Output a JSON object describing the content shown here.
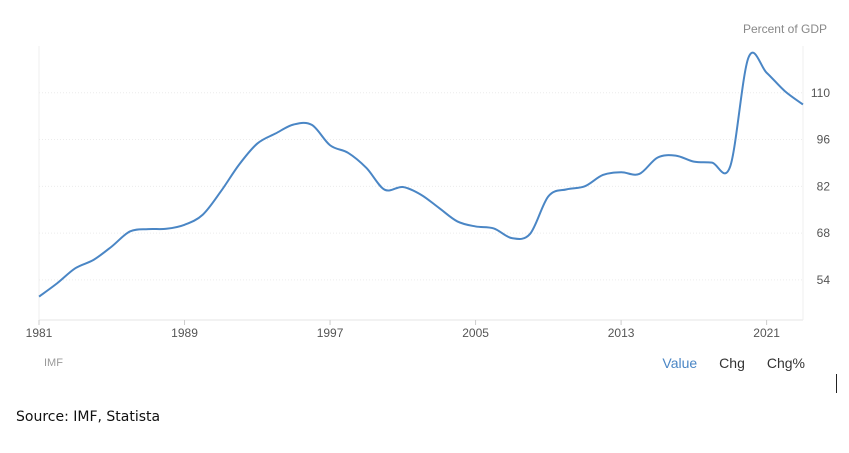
{
  "chart_data": {
    "type": "line",
    "unit_label": "Percent of GDP",
    "x_tick_labels": [
      "1981",
      "1989",
      "1997",
      "2005",
      "2013",
      "2021"
    ],
    "y_tick_labels": [
      "54",
      "68",
      "82",
      "96",
      "110"
    ],
    "xlim": [
      1981,
      2023
    ],
    "ylim": [
      42,
      124
    ],
    "grid": true,
    "series": [
      {
        "color": "#4a86c5",
        "points": [
          [
            1981,
            49
          ],
          [
            1982,
            53
          ],
          [
            1983,
            57.5
          ],
          [
            1984,
            60
          ],
          [
            1985,
            64
          ],
          [
            1986,
            68.5
          ],
          [
            1987,
            69.2
          ],
          [
            1988,
            69.3
          ],
          [
            1989,
            70.5
          ],
          [
            1990,
            73.5
          ],
          [
            1991,
            80.5
          ],
          [
            1992,
            88.5
          ],
          [
            1993,
            94.8
          ],
          [
            1994,
            97.8
          ],
          [
            1995,
            100.5
          ],
          [
            1996,
            100.4
          ],
          [
            1997,
            94.3
          ],
          [
            1998,
            92
          ],
          [
            1999,
            87.5
          ],
          [
            2000,
            81
          ],
          [
            2001,
            81.8
          ],
          [
            2002,
            79.5
          ],
          [
            2003,
            75.5
          ],
          [
            2004,
            71.5
          ],
          [
            2005,
            70
          ],
          [
            2006,
            69.4
          ],
          [
            2007,
            66.5
          ],
          [
            2008,
            67.8
          ],
          [
            2009,
            79
          ],
          [
            2010,
            81.1
          ],
          [
            2011,
            82
          ],
          [
            2012,
            85.4
          ],
          [
            2013,
            86.2
          ],
          [
            2014,
            85.7
          ],
          [
            2015,
            90.6
          ],
          [
            2016,
            91.2
          ],
          [
            2017,
            89.4
          ],
          [
            2018,
            89.1
          ],
          [
            2019,
            88
          ],
          [
            2020,
            120.5
          ],
          [
            2021,
            116
          ],
          [
            2022,
            110.5
          ],
          [
            2023,
            106.5
          ]
        ]
      }
    ]
  },
  "footer": {
    "source_org": "IMF",
    "toggles": [
      "Value",
      "Chg",
      "Chg%"
    ],
    "active_toggle": "Value"
  },
  "caption": "Source: IMF, Statista"
}
